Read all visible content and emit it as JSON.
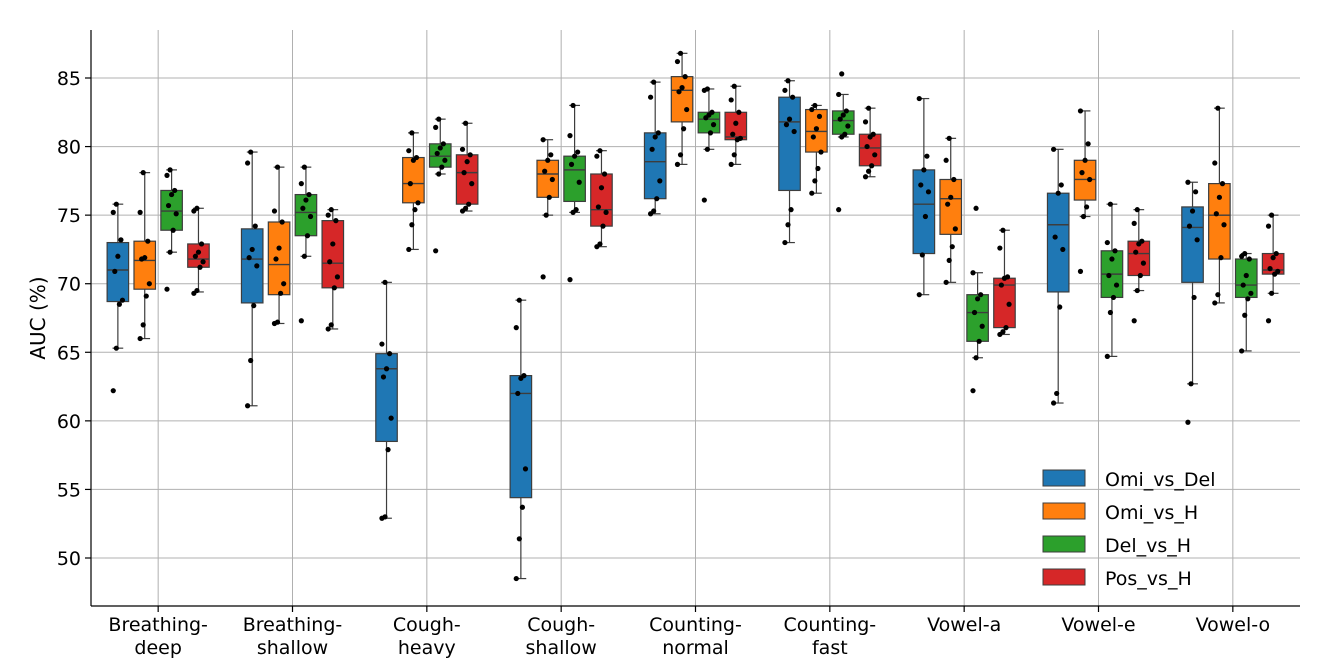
{
  "chart_data": {
    "type": "box",
    "title": "",
    "xlabel": "",
    "ylabel": "AUC (%)",
    "ylim": [
      46.5,
      88.5
    ],
    "yticks": [
      50,
      55,
      60,
      65,
      70,
      75,
      80,
      85
    ],
    "grid": true,
    "legend_position": "lower-right",
    "categories": [
      [
        "Breathing-",
        "deep"
      ],
      [
        "Breathing-",
        "shallow"
      ],
      [
        "Cough-",
        "heavy"
      ],
      [
        "Cough-",
        "shallow"
      ],
      [
        "Counting-",
        "normal"
      ],
      [
        "Counting-",
        "fast"
      ],
      [
        "Vowel-a"
      ],
      [
        "Vowel-e"
      ],
      [
        "Vowel-o"
      ]
    ],
    "series": [
      {
        "name": "Omi_vs_Del",
        "color": "#1f77b4",
        "boxes": [
          {
            "whisker_low": 65.3,
            "q1": 68.7,
            "median": 71.0,
            "q3": 73.0,
            "whisker_high": 75.8,
            "points": [
              62.2,
              65.3,
              68.5,
              68.8,
              70.9,
              72.0,
              73.2,
              75.2,
              75.8
            ]
          },
          {
            "whisker_low": 61.1,
            "q1": 68.6,
            "median": 71.8,
            "q3": 74.0,
            "whisker_high": 79.6,
            "points": [
              61.1,
              64.4,
              68.4,
              71.3,
              71.9,
              72.5,
              74.2,
              78.8,
              79.6
            ]
          },
          {
            "whisker_low": 52.9,
            "q1": 58.5,
            "median": 63.8,
            "q3": 64.9,
            "whisker_high": 70.1,
            "points": [
              52.9,
              53.0,
              57.9,
              60.2,
              63.2,
              63.8,
              64.9,
              65.6,
              70.1
            ]
          },
          {
            "whisker_low": 48.5,
            "q1": 54.4,
            "median": 62.0,
            "q3": 63.3,
            "whisker_high": 68.8,
            "points": [
              48.5,
              51.4,
              53.7,
              56.5,
              62.0,
              63.1,
              63.3,
              66.8,
              68.8
            ]
          },
          {
            "whisker_low": 75.1,
            "q1": 76.2,
            "median": 78.9,
            "q3": 81.0,
            "whisker_high": 84.7,
            "points": [
              75.1,
              75.3,
              76.2,
              77.5,
              79.8,
              80.7,
              81.0,
              83.6,
              84.7
            ]
          },
          {
            "whisker_low": 73.0,
            "q1": 76.8,
            "median": 81.8,
            "q3": 83.6,
            "whisker_high": 84.8,
            "points": [
              73.0,
              74.3,
              75.4,
              81.1,
              81.6,
              82.0,
              83.6,
              84.1,
              84.8
            ]
          },
          {
            "whisker_low": 69.2,
            "q1": 72.2,
            "median": 75.8,
            "q3": 78.3,
            "whisker_high": 83.5,
            "points": [
              69.2,
              72.1,
              74.9,
              76.7,
              77.2,
              78.3,
              79.3,
              83.5
            ]
          },
          {
            "whisker_low": 61.3,
            "q1": 69.4,
            "median": 74.3,
            "q3": 76.6,
            "whisker_high": 79.8,
            "points": [
              61.3,
              62.0,
              68.3,
              72.5,
              73.4,
              76.6,
              77.2,
              79.8
            ]
          },
          {
            "whisker_low": 62.7,
            "q1": 70.1,
            "median": 74.1,
            "q3": 75.6,
            "whisker_high": 77.4,
            "points": [
              59.9,
              62.7,
              69.0,
              73.2,
              74.2,
              75.3,
              76.7,
              77.4
            ]
          }
        ]
      },
      {
        "name": "Omi_vs_H",
        "color": "#ff7f0e",
        "boxes": [
          {
            "whisker_low": 66.0,
            "q1": 69.6,
            "median": 71.7,
            "q3": 73.1,
            "whisker_high": 78.1,
            "points": [
              66.0,
              67.0,
              69.1,
              70.0,
              71.8,
              71.9,
              73.1,
              75.2,
              78.1
            ]
          },
          {
            "whisker_low": 67.1,
            "q1": 69.2,
            "median": 71.4,
            "q3": 74.5,
            "whisker_high": 78.5,
            "points": [
              67.1,
              67.2,
              69.3,
              70.0,
              71.8,
              72.6,
              74.5,
              75.3,
              78.5
            ]
          },
          {
            "whisker_low": 72.5,
            "q1": 75.9,
            "median": 77.3,
            "q3": 79.2,
            "whisker_high": 81.0,
            "points": [
              72.5,
              74.3,
              75.4,
              75.9,
              77.3,
              79.0,
              79.2,
              79.7,
              81.0
            ]
          },
          {
            "whisker_low": 75.0,
            "q1": 76.3,
            "median": 78.0,
            "q3": 79.0,
            "whisker_high": 80.5,
            "points": [
              70.5,
              75.0,
              76.3,
              77.6,
              78.2,
              79.0,
              79.4,
              80.5
            ]
          },
          {
            "whisker_low": 78.7,
            "q1": 81.8,
            "median": 84.1,
            "q3": 85.1,
            "whisker_high": 86.8,
            "points": [
              78.7,
              79.4,
              81.3,
              82.7,
              84.0,
              84.3,
              85.1,
              86.2,
              86.8
            ]
          },
          {
            "whisker_low": 76.6,
            "q1": 79.6,
            "median": 81.1,
            "q3": 82.7,
            "whisker_high": 83.0,
            "points": [
              76.6,
              77.5,
              78.4,
              79.6,
              80.7,
              81.3,
              82.2,
              82.7,
              83.0
            ]
          },
          {
            "whisker_low": 70.1,
            "q1": 73.6,
            "median": 76.2,
            "q3": 77.6,
            "whisker_high": 80.6,
            "points": [
              70.1,
              71.7,
              72.7,
              74.0,
              75.8,
              76.3,
              77.6,
              79.0,
              80.6
            ]
          },
          {
            "whisker_low": 74.9,
            "q1": 76.1,
            "median": 77.6,
            "q3": 79.0,
            "whisker_high": 82.6,
            "points": [
              70.9,
              74.9,
              75.6,
              77.6,
              78.1,
              79.0,
              80.2,
              82.6
            ]
          },
          {
            "whisker_low": 68.6,
            "q1": 71.8,
            "median": 75.0,
            "q3": 77.3,
            "whisker_high": 82.8,
            "points": [
              68.6,
              69.2,
              71.9,
              74.3,
              75.1,
              76.3,
              77.3,
              78.8,
              82.8
            ]
          }
        ]
      },
      {
        "name": "Del_vs_H",
        "color": "#2ca02c",
        "boxes": [
          {
            "whisker_low": 72.3,
            "q1": 73.9,
            "median": 75.3,
            "q3": 76.8,
            "whisker_high": 78.3,
            "points": [
              69.6,
              72.3,
              73.9,
              75.1,
              75.7,
              76.5,
              76.8,
              77.9,
              78.3
            ]
          },
          {
            "whisker_low": 72.0,
            "q1": 73.5,
            "median": 75.2,
            "q3": 76.5,
            "whisker_high": 78.5,
            "points": [
              67.3,
              72.0,
              73.5,
              74.9,
              75.5,
              76.1,
              76.5,
              77.3,
              78.5
            ]
          },
          {
            "whisker_low": 78.0,
            "q1": 78.5,
            "median": 79.3,
            "q3": 80.2,
            "whisker_high": 82.0,
            "points": [
              72.4,
              78.0,
              78.5,
              79.0,
              79.5,
              79.9,
              80.2,
              81.4,
              82.0
            ]
          },
          {
            "whisker_low": 75.2,
            "q1": 76.0,
            "median": 78.3,
            "q3": 79.3,
            "whisker_high": 83.0,
            "points": [
              70.3,
              75.2,
              75.4,
              77.4,
              78.7,
              79.3,
              79.6,
              80.8,
              83.0
            ]
          },
          {
            "whisker_low": 79.8,
            "q1": 81.0,
            "median": 82.0,
            "q3": 82.5,
            "whisker_high": 84.2,
            "points": [
              76.1,
              79.8,
              81.0,
              81.6,
              82.1,
              82.3,
              82.5,
              84.1,
              84.2
            ]
          },
          {
            "whisker_low": 80.7,
            "q1": 80.9,
            "median": 81.9,
            "q3": 82.6,
            "whisker_high": 83.8,
            "points": [
              75.4,
              80.7,
              80.9,
              81.5,
              82.0,
              82.3,
              82.6,
              83.8,
              85.3
            ]
          },
          {
            "whisker_low": 64.6,
            "q1": 65.8,
            "median": 67.9,
            "q3": 69.2,
            "whisker_high": 70.8,
            "points": [
              62.2,
              64.6,
              65.8,
              66.9,
              67.9,
              68.9,
              69.2,
              70.8,
              75.5
            ]
          },
          {
            "whisker_low": 64.7,
            "q1": 69.0,
            "median": 70.7,
            "q3": 72.4,
            "whisker_high": 75.8,
            "points": [
              64.7,
              67.9,
              69.0,
              69.9,
              70.6,
              71.8,
              72.4,
              73.0,
              75.8
            ]
          },
          {
            "whisker_low": 65.1,
            "q1": 69.0,
            "median": 69.9,
            "q3": 71.8,
            "whisker_high": 72.2,
            "points": [
              65.1,
              67.7,
              68.9,
              69.3,
              69.9,
              70.6,
              71.8,
              72.0,
              72.2
            ]
          }
        ]
      },
      {
        "name": "Pos_vs_H",
        "color": "#d62728",
        "boxes": [
          {
            "whisker_low": 69.4,
            "q1": 71.2,
            "median": 71.8,
            "q3": 72.9,
            "whisker_high": 75.5,
            "points": [
              69.3,
              69.5,
              71.2,
              71.6,
              72.0,
              72.3,
              72.9,
              75.3,
              75.5
            ]
          },
          {
            "whisker_low": 66.7,
            "q1": 69.7,
            "median": 71.5,
            "q3": 74.6,
            "whisker_high": 75.4,
            "points": [
              66.7,
              67.0,
              69.7,
              70.5,
              71.6,
              72.9,
              74.6,
              75.0,
              75.4
            ]
          },
          {
            "whisker_low": 75.3,
            "q1": 75.8,
            "median": 78.1,
            "q3": 79.4,
            "whisker_high": 81.7,
            "points": [
              75.3,
              75.5,
              75.8,
              77.3,
              78.1,
              78.9,
              79.4,
              79.8,
              81.7
            ]
          },
          {
            "whisker_low": 72.7,
            "q1": 74.2,
            "median": 75.4,
            "q3": 78.0,
            "whisker_high": 79.7,
            "points": [
              72.7,
              72.9,
              74.2,
              75.2,
              75.6,
              77.0,
              78.0,
              79.3,
              79.7
            ]
          },
          {
            "whisker_low": 78.7,
            "q1": 80.5,
            "median": 80.7,
            "q3": 82.5,
            "whisker_high": 84.4,
            "points": [
              78.7,
              79.4,
              80.5,
              80.6,
              80.9,
              81.7,
              82.5,
              83.4,
              84.4
            ]
          },
          {
            "whisker_low": 77.8,
            "q1": 78.6,
            "median": 79.9,
            "q3": 80.9,
            "whisker_high": 82.8,
            "points": [
              77.8,
              78.2,
              78.6,
              79.4,
              80.0,
              80.7,
              80.9,
              81.8,
              82.8
            ]
          },
          {
            "whisker_low": 66.3,
            "q1": 66.8,
            "median": 69.9,
            "q3": 70.4,
            "whisker_high": 73.9,
            "points": [
              66.3,
              66.5,
              66.8,
              68.5,
              69.9,
              70.4,
              70.5,
              72.6,
              73.9
            ]
          },
          {
            "whisker_low": 69.5,
            "q1": 70.6,
            "median": 72.2,
            "q3": 73.1,
            "whisker_high": 75.4,
            "points": [
              67.3,
              69.5,
              70.6,
              71.5,
              72.3,
              72.9,
              73.1,
              74.4,
              75.4
            ]
          },
          {
            "whisker_low": 69.3,
            "q1": 70.7,
            "median": 71.0,
            "q3": 72.2,
            "whisker_high": 75.0,
            "points": [
              67.3,
              69.3,
              70.7,
              70.9,
              71.1,
              71.9,
              72.2,
              74.2,
              75.0
            ]
          }
        ]
      }
    ]
  }
}
